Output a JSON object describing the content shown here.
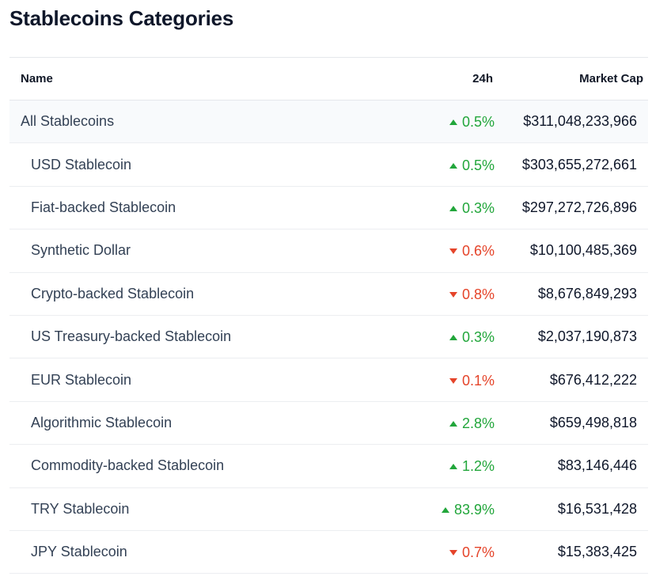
{
  "title": "Stablecoins Categories",
  "columns": {
    "name": "Name",
    "change": "24h",
    "market_cap": "Market Cap"
  },
  "colors": {
    "up": "#22a63b",
    "down": "#e5442a"
  },
  "rows": [
    {
      "name": "All Stablecoins",
      "change": "0.5%",
      "direction": "up",
      "market_cap": "$311,048,233,966",
      "level": "all"
    },
    {
      "name": "USD Stablecoin",
      "change": "0.5%",
      "direction": "up",
      "market_cap": "$303,655,272,661",
      "level": "sub"
    },
    {
      "name": "Fiat-backed Stablecoin",
      "change": "0.3%",
      "direction": "up",
      "market_cap": "$297,272,726,896",
      "level": "sub"
    },
    {
      "name": "Synthetic Dollar",
      "change": "0.6%",
      "direction": "down",
      "market_cap": "$10,100,485,369",
      "level": "sub"
    },
    {
      "name": "Crypto-backed Stablecoin",
      "change": "0.8%",
      "direction": "down",
      "market_cap": "$8,676,849,293",
      "level": "sub"
    },
    {
      "name": "US Treasury-backed Stablecoin",
      "change": "0.3%",
      "direction": "up",
      "market_cap": "$2,037,190,873",
      "level": "sub"
    },
    {
      "name": "EUR Stablecoin",
      "change": "0.1%",
      "direction": "down",
      "market_cap": "$676,412,222",
      "level": "sub"
    },
    {
      "name": "Algorithmic Stablecoin",
      "change": "2.8%",
      "direction": "up",
      "market_cap": "$659,498,818",
      "level": "sub"
    },
    {
      "name": "Commodity-backed Stablecoin",
      "change": "1.2%",
      "direction": "up",
      "market_cap": "$83,146,446",
      "level": "sub"
    },
    {
      "name": "TRY Stablecoin",
      "change": "83.9%",
      "direction": "up",
      "market_cap": "$16,531,428",
      "level": "sub"
    },
    {
      "name": "JPY Stablecoin",
      "change": "0.7%",
      "direction": "down",
      "market_cap": "$15,383,425",
      "level": "sub"
    }
  ]
}
